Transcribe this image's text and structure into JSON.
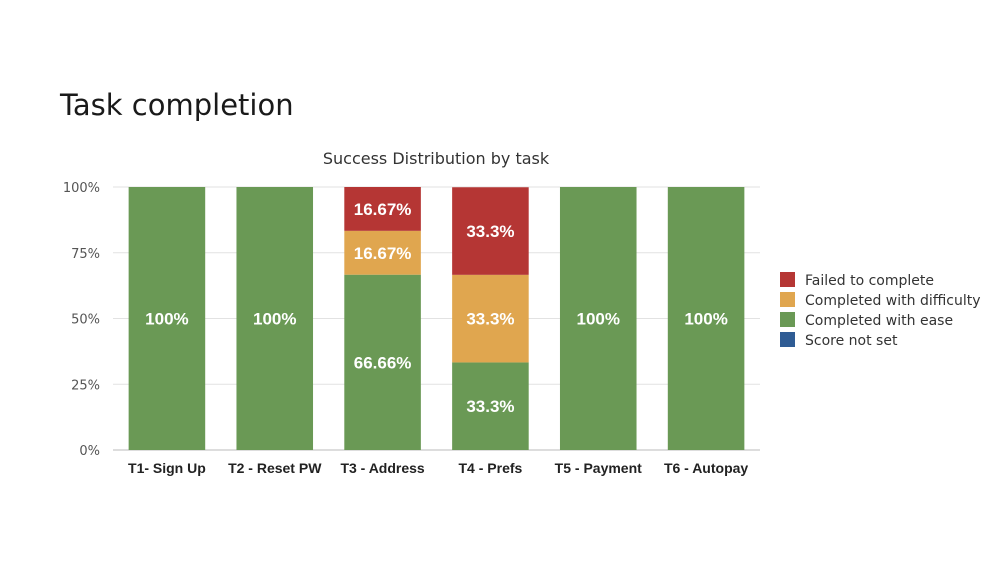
{
  "page": {
    "title": "Task completion"
  },
  "chart_data": {
    "type": "bar",
    "stacked": true,
    "title": "Success Distribution by task",
    "categories": [
      "T1- Sign Up",
      "T2 - Reset PW",
      "T3 - Address",
      "T4 - Prefs",
      "T5 -  Payment",
      "T6 - Autopay"
    ],
    "ylim": [
      0,
      100
    ],
    "yticks": [
      "0%",
      "25%",
      "50%",
      "75%",
      "100%"
    ],
    "ytick_values": [
      0,
      25,
      50,
      75,
      100
    ],
    "grid": true,
    "legend_position": "right",
    "series": [
      {
        "name": "Completed with ease",
        "color": "#6a9955",
        "values": [
          100,
          100,
          66.66,
          33.3,
          100,
          100
        ],
        "labels": [
          "100%",
          "100%",
          "66.66%",
          "33.3%",
          "100%",
          "100%"
        ]
      },
      {
        "name": "Completed with difficulty",
        "color": "#e0a64f",
        "values": [
          0,
          0,
          16.67,
          33.3,
          0,
          0
        ],
        "labels": [
          "",
          "",
          "16.67%",
          "33.3%",
          "",
          ""
        ]
      },
      {
        "name": "Failed to complete",
        "color": "#b53634",
        "values": [
          0,
          0,
          16.67,
          33.3,
          0,
          0
        ],
        "labels": [
          "",
          "",
          "16.67%",
          "33.3%",
          "",
          ""
        ]
      },
      {
        "name": "Score not set",
        "color": "#2f5c94",
        "values": [
          0,
          0,
          0,
          0,
          0,
          0
        ],
        "labels": [
          "",
          "",
          "",
          "",
          "",
          ""
        ]
      }
    ],
    "legend_order": [
      "Failed to complete",
      "Completed with difficulty",
      "Completed with ease",
      "Score not set"
    ]
  }
}
